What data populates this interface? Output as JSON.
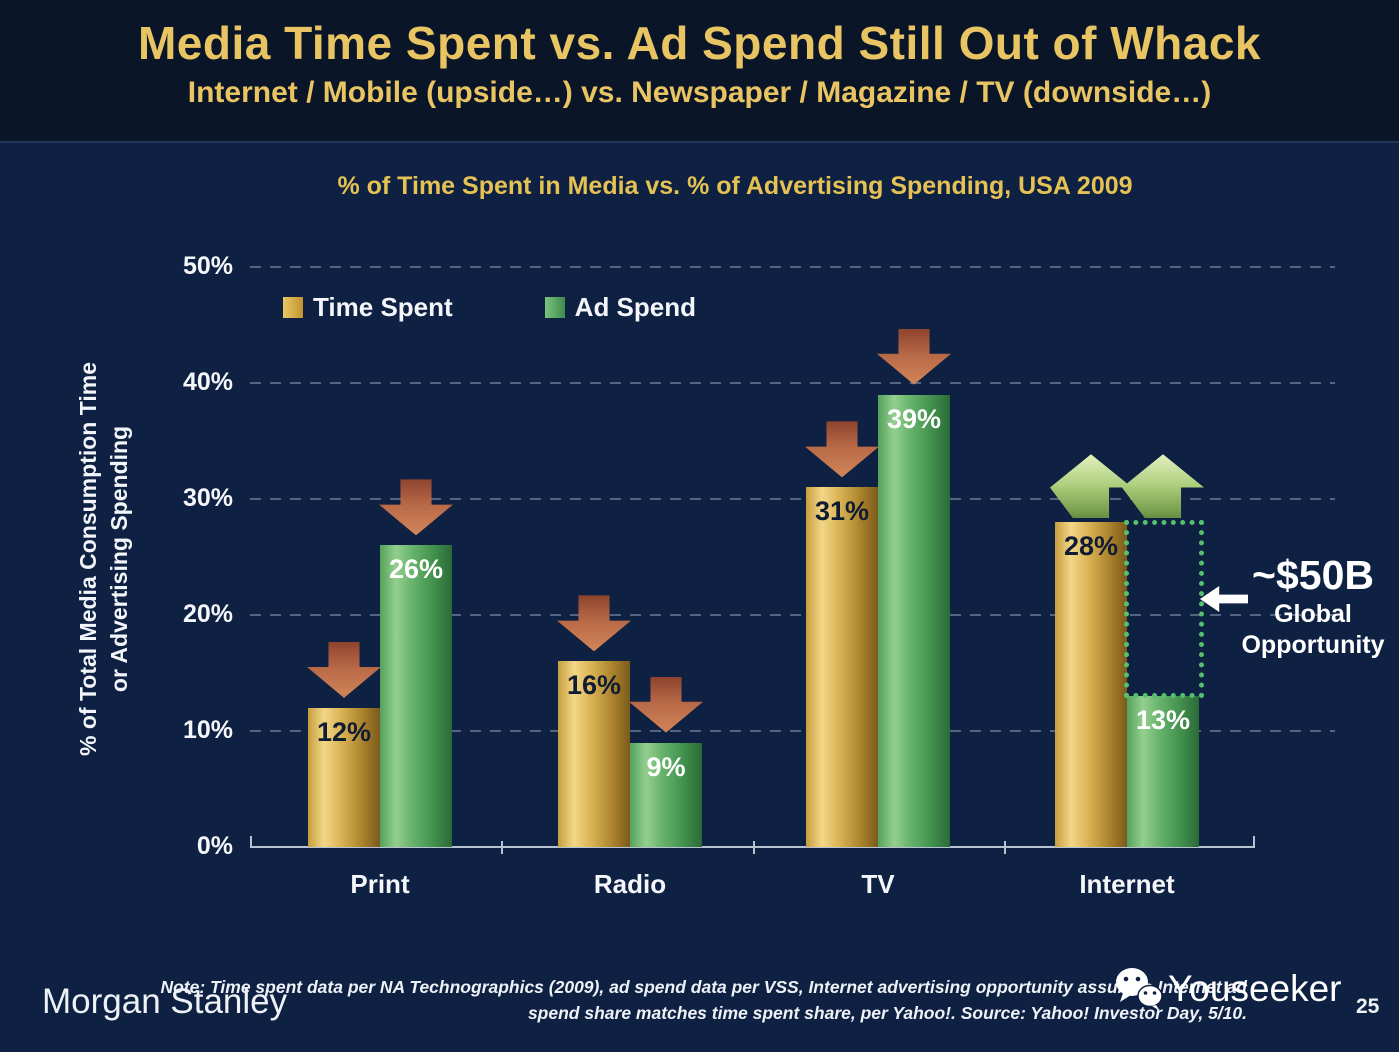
{
  "slide": {
    "title": "Media Time Spent vs. Ad Spend Still Out of Whack",
    "subtitle": "Internet / Mobile (upside…) vs. Newspaper / Magazine / TV (downside…)",
    "page_number": "25"
  },
  "chart_data": {
    "type": "bar",
    "title": "% of Time Spent in Media vs. % of Advertising Spending, USA 2009",
    "ylabel": "% of Total Media Consumption Time or Advertising Spending",
    "ylabel_lines": [
      "% of Total Media Consumption Time",
      "or Advertising Spending"
    ],
    "categories": [
      "Print",
      "Radio",
      "TV",
      "Internet"
    ],
    "series": [
      {
        "name": "Time Spent",
        "color": "#d9ae4a",
        "values": [
          12,
          16,
          31,
          28
        ],
        "arrows": [
          "down",
          "down",
          "down",
          "up"
        ]
      },
      {
        "name": "Ad Spend",
        "color": "#56a35e",
        "values": [
          26,
          9,
          39,
          13
        ],
        "arrows": [
          "down",
          "down",
          "down",
          "up"
        ]
      }
    ],
    "unit": "%",
    "ylim": [
      0,
      50
    ],
    "yticks": [
      "50%",
      "40%",
      "30%",
      "20%",
      "10%",
      "0%"
    ],
    "grid": "dashed horizontal gridlines every 10%",
    "legend_position": "top-left inside plot",
    "annotations": {
      "opportunity": {
        "label_big": "~$50B",
        "label_line1": "Global",
        "label_line2": "Opportunity",
        "category": "Internet",
        "series": "Ad Spend",
        "from_pct": 13,
        "to_pct": 28
      }
    }
  },
  "footer": {
    "brand": "Morgan Stanley",
    "note_line1": "Note: Time spent data per NA Technographics (2009), ad spend data per VSS, Internet advertising opportunity assumes Internet ad",
    "note_line2": "spend share matches time spent share, per Yahoo!. Source: Yahoo! Investor Day, 5/10.",
    "watermark": "Youseeker"
  },
  "colors": {
    "background": "#0e2142",
    "header_background": "#0a1628",
    "title_gold": "#e9c463",
    "bar_gold": "#d9ae4a",
    "bar_green": "#56a35e",
    "down_arrow_copper": "#bc6a48",
    "up_arrow_green": "#abce7c",
    "opportunity_dotted_green": "#56c16c",
    "text_white": "#f2f5f9"
  }
}
